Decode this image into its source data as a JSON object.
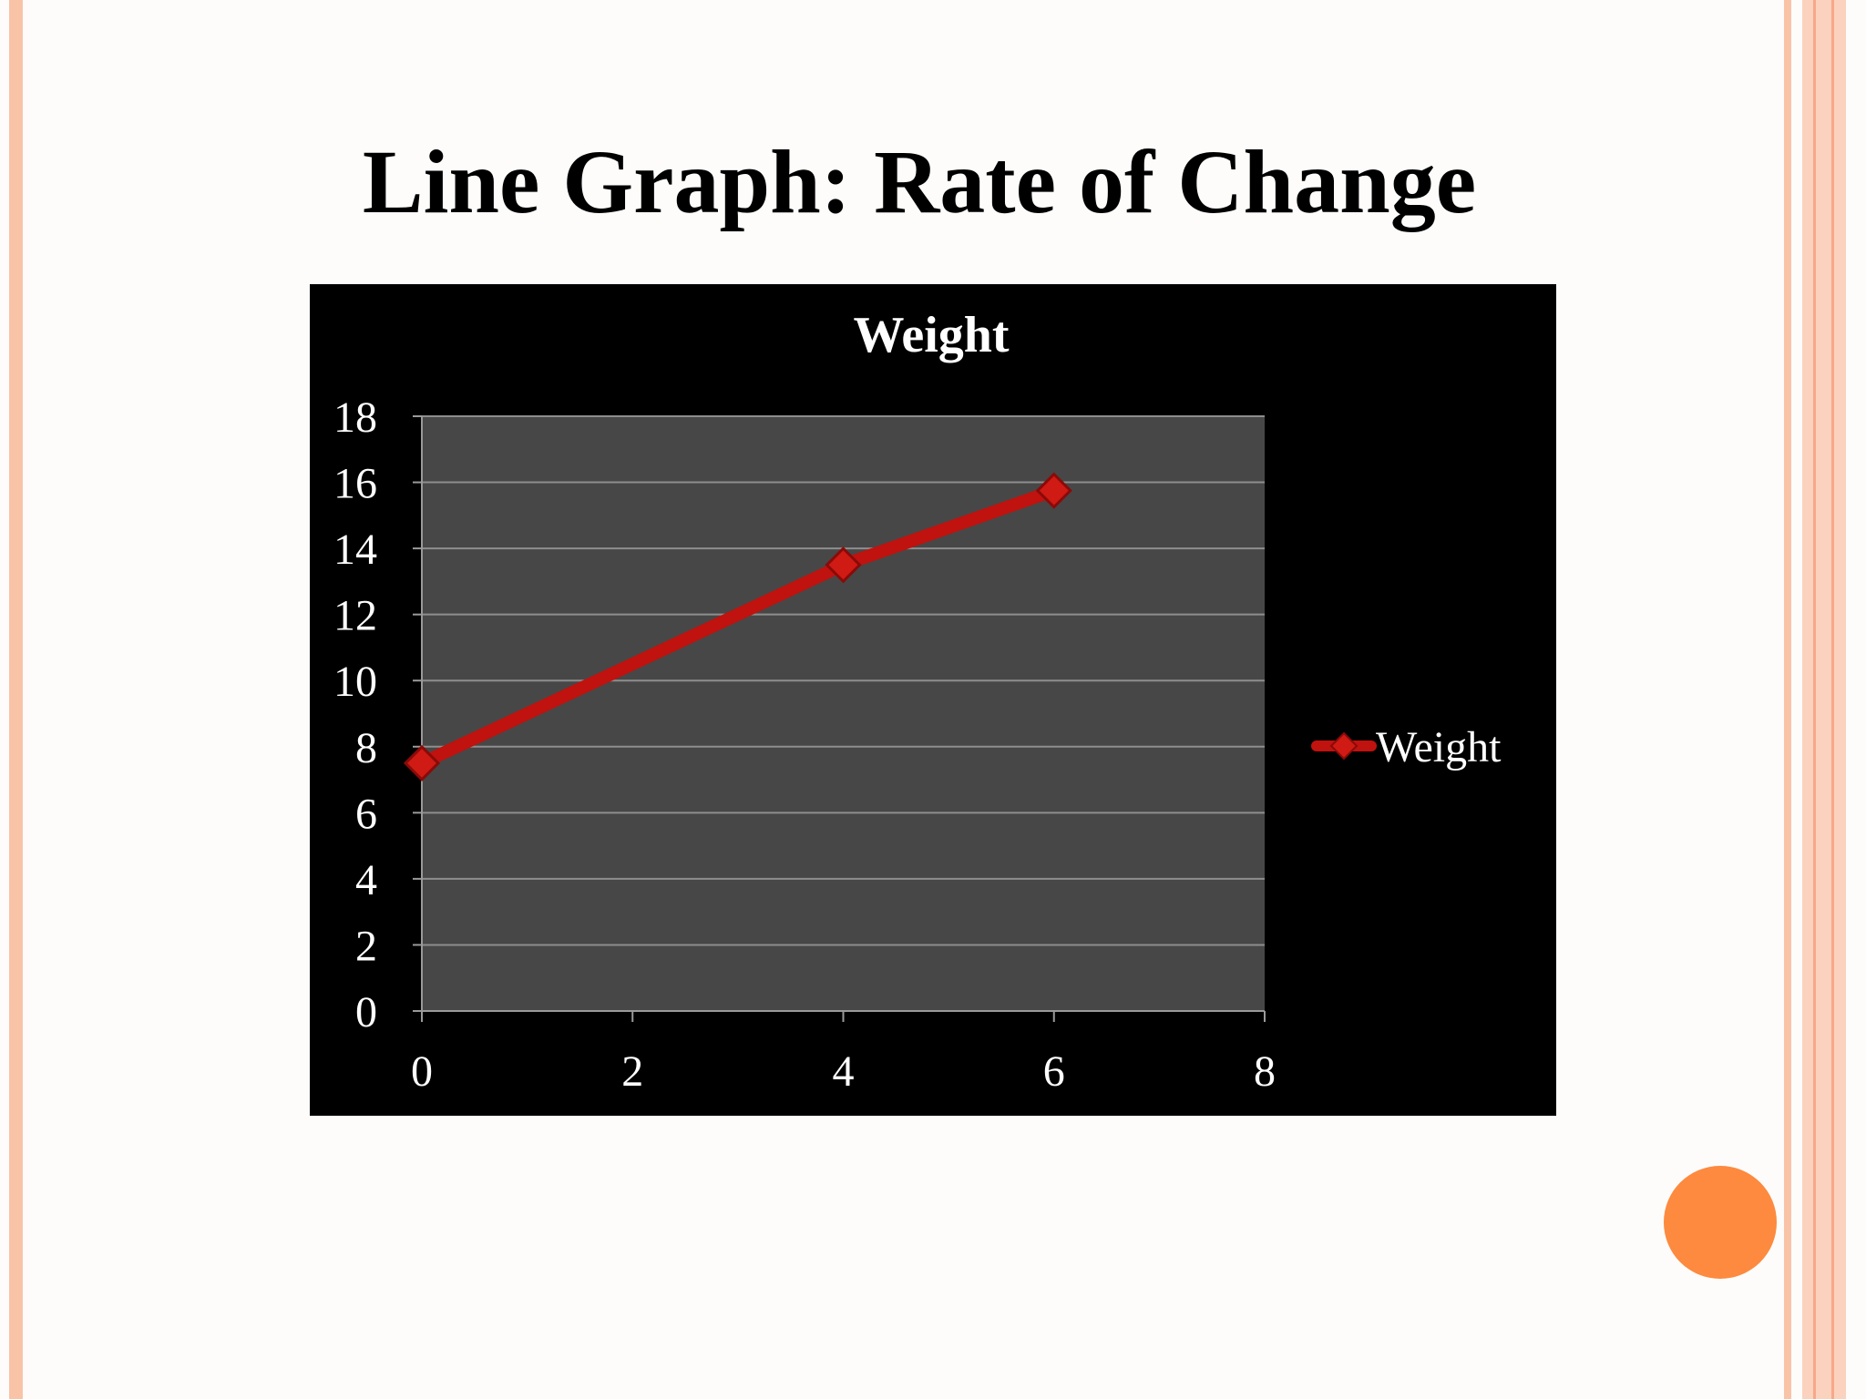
{
  "slide": {
    "title": "Line Graph: Rate of Change"
  },
  "colors": {
    "background": "#fdfcfb",
    "accent_border": "#f9c3a8",
    "accent_dot": "#fd8a3e",
    "chart_bg": "#000000",
    "plot_bg": "#474747",
    "series_line": "#c0120e",
    "text_light": "#ffffff"
  },
  "chart_data": {
    "type": "line",
    "title": "Weight",
    "xlabel": "",
    "ylabel": "",
    "xlim": [
      0,
      8
    ],
    "ylim": [
      0,
      18
    ],
    "x_ticks": [
      "0",
      "2",
      "4",
      "6",
      "8"
    ],
    "y_ticks": [
      "0",
      "2",
      "4",
      "6",
      "8",
      "10",
      "12",
      "14",
      "16",
      "18"
    ],
    "grid": true,
    "legend_position": "right",
    "marker": "diamond",
    "series": [
      {
        "name": "Weight",
        "x": [
          0,
          4,
          6
        ],
        "y": [
          7.5,
          13.5,
          15.75
        ]
      }
    ]
  }
}
